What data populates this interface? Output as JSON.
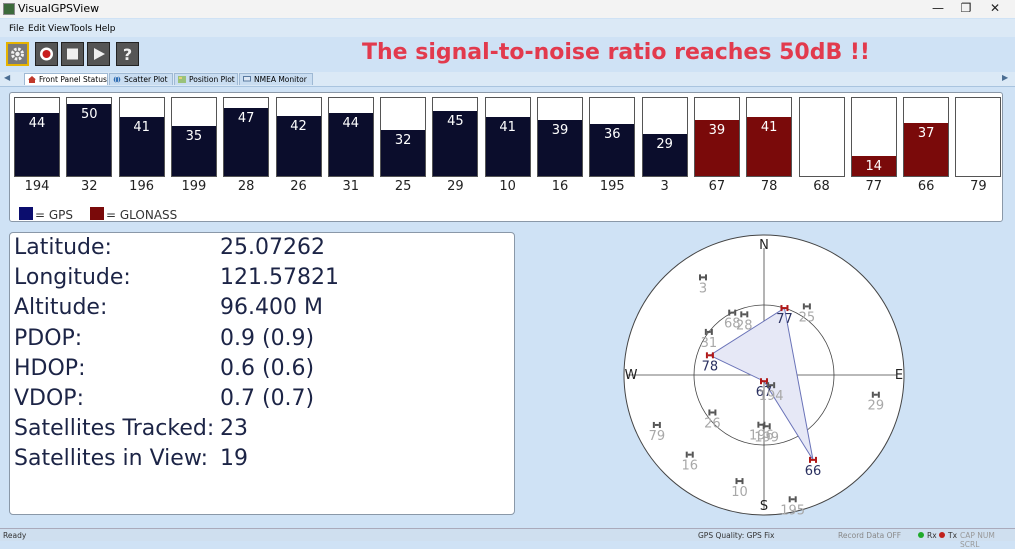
{
  "window": {
    "title": "VisualGPSView",
    "minimize": "—",
    "maximize": "❐",
    "close": "✕"
  },
  "menu": [
    "File",
    "Edit",
    "View",
    "Tools",
    "Help"
  ],
  "toolbar": {
    "buttons": [
      "settings-icon",
      "record-icon",
      "stop-icon",
      "play-icon",
      "help-icon"
    ]
  },
  "banner": "The signal-to-noise ratio reaches 50dB !!",
  "tabs": [
    {
      "label": "Front Panel Status",
      "active": true
    },
    {
      "label": "Scatter Plot",
      "active": false
    },
    {
      "label": "Position Plot",
      "active": false
    },
    {
      "label": "NMEA Monitor",
      "active": false
    }
  ],
  "snr": {
    "max": 50,
    "bars": [
      {
        "prn": "194",
        "value": 44,
        "system": "gps"
      },
      {
        "prn": "32",
        "value": 50,
        "system": "gps"
      },
      {
        "prn": "196",
        "value": 41,
        "system": "gps"
      },
      {
        "prn": "199",
        "value": 35,
        "system": "gps"
      },
      {
        "prn": "28",
        "value": 47,
        "system": "gps"
      },
      {
        "prn": "26",
        "value": 42,
        "system": "gps"
      },
      {
        "prn": "31",
        "value": 44,
        "system": "gps"
      },
      {
        "prn": "25",
        "value": 32,
        "system": "gps"
      },
      {
        "prn": "29",
        "value": 45,
        "system": "gps"
      },
      {
        "prn": "10",
        "value": 41,
        "system": "gps"
      },
      {
        "prn": "16",
        "value": 39,
        "system": "gps"
      },
      {
        "prn": "195",
        "value": 36,
        "system": "gps"
      },
      {
        "prn": "3",
        "value": 29,
        "system": "gps"
      },
      {
        "prn": "67",
        "value": 39,
        "system": "glonass"
      },
      {
        "prn": "78",
        "value": 41,
        "system": "glonass"
      },
      {
        "prn": "68",
        "value": null,
        "system": "none"
      },
      {
        "prn": "77",
        "value": 14,
        "system": "glonass"
      },
      {
        "prn": "66",
        "value": 37,
        "system": "glonass"
      },
      {
        "prn": "79",
        "value": null,
        "system": "none"
      }
    ],
    "legend": [
      {
        "label": "= GPS",
        "color": "#0b0d6e"
      },
      {
        "label": "= GLONASS",
        "color": "#7a0a0a"
      }
    ]
  },
  "info": [
    {
      "label": "Latitude:",
      "value": "25.07262"
    },
    {
      "label": "Longitude:",
      "value": "121.57821"
    },
    {
      "label": "Altitude:",
      "value": "96.400 M"
    },
    {
      "label": "PDOP:",
      "value": "0.9 (0.9)"
    },
    {
      "label": "HDOP:",
      "value": "0.6 (0.6)"
    },
    {
      "label": "VDOP:",
      "value": "0.7 (0.7)"
    },
    {
      "label": "Satellites Tracked:",
      "value": "23"
    },
    {
      "label": "Satellites in View:",
      "value": "19"
    }
  ],
  "sky": {
    "directions": {
      "n": "N",
      "s": "S",
      "e": "E",
      "w": "W"
    },
    "satellites": [
      {
        "prn": "3",
        "az": 328,
        "el": 16,
        "system": "gps",
        "used": false
      },
      {
        "prn": "77",
        "az": 17,
        "el": 45,
        "system": "glonass",
        "used": true
      },
      {
        "prn": "25",
        "az": 32,
        "el": 38,
        "system": "gps",
        "used": false
      },
      {
        "prn": "68",
        "az": 333,
        "el": 45,
        "system": "gps",
        "used": false
      },
      {
        "prn": "28",
        "az": 342,
        "el": 49,
        "system": "gps",
        "used": false
      },
      {
        "prn": "31",
        "az": 308,
        "el": 45,
        "system": "gps",
        "used": false
      },
      {
        "prn": "78",
        "az": 290,
        "el": 53,
        "system": "glonass",
        "used": true
      },
      {
        "prn": "67",
        "az": 180,
        "el": 86,
        "system": "glonass",
        "used": true
      },
      {
        "prn": "194",
        "az": 145,
        "el": 82,
        "system": "gps",
        "used": false
      },
      {
        "prn": "29",
        "az": 100,
        "el": 17,
        "system": "gps",
        "used": false
      },
      {
        "prn": "26",
        "az": 234,
        "el": 49,
        "system": "gps",
        "used": false
      },
      {
        "prn": "79",
        "az": 245,
        "el": 14,
        "system": "gps",
        "used": false
      },
      {
        "prn": "196",
        "az": 183,
        "el": 58,
        "system": "gps",
        "used": false
      },
      {
        "prn": "199",
        "az": 177,
        "el": 57,
        "system": "gps",
        "used": false
      },
      {
        "prn": "16",
        "az": 223,
        "el": 20,
        "system": "gps",
        "used": false
      },
      {
        "prn": "10",
        "az": 193,
        "el": 20,
        "system": "gps",
        "used": false
      },
      {
        "prn": "66",
        "az": 150,
        "el": 27,
        "system": "glonass",
        "used": true
      },
      {
        "prn": "195",
        "az": 167,
        "el": 8,
        "system": "gps",
        "used": false
      }
    ]
  },
  "status": {
    "left": "Ready",
    "quality": "GPS Quality: GPS Fix",
    "record": "Record Data OFF",
    "rx": "Rx",
    "tx": "Tx",
    "keys": "CAP NUM SCRL"
  }
}
